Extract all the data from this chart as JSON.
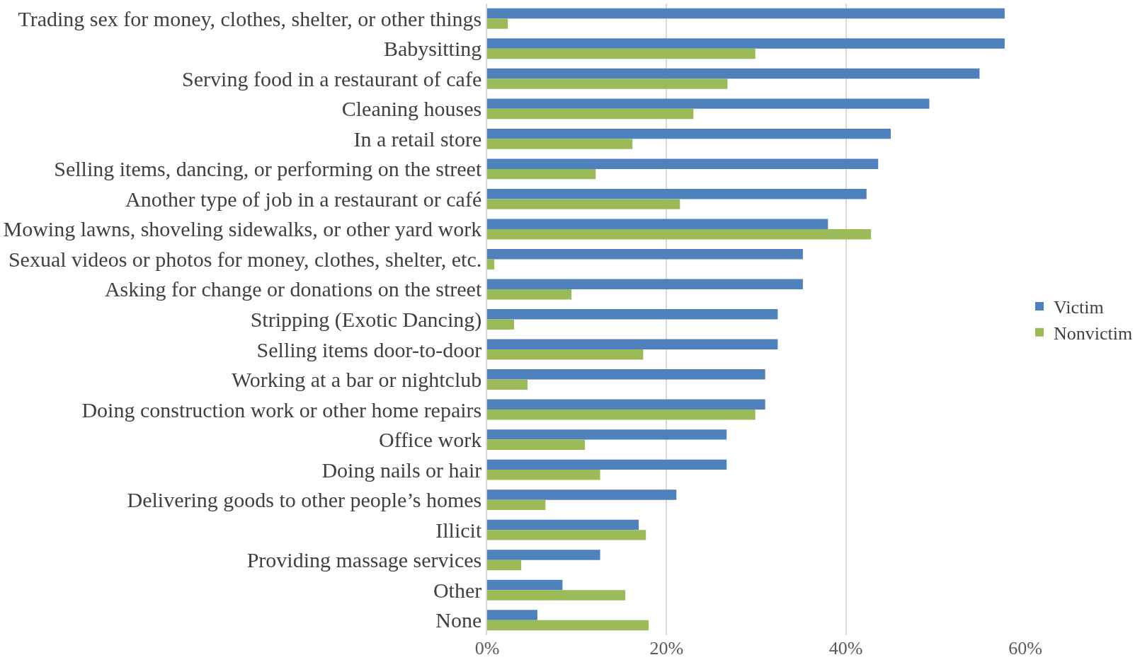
{
  "chart_data": {
    "type": "bar",
    "orientation": "horizontal",
    "categories": [
      "Trading sex for money, clothes, shelter, or other things",
      "Babysitting",
      "Serving food in a restaurant of cafe",
      "Cleaning houses",
      "In a retail store",
      "Selling items, dancing, or performing on the street",
      "Another type of job in a restaurant or café",
      "Mowing lawns, shoveling sidewalks, or other yard work",
      "Sexual videos or photos for money, clothes, shelter, etc.",
      "Asking for change or donations on the street",
      "Stripping (Exotic Dancing)",
      "Selling items door-to-door",
      "Working at a bar or nightclub",
      "Doing construction work or other home repairs",
      "Office work",
      "Doing nails or hair",
      "Delivering goods to other people’s homes",
      "Illicit",
      "Providing massage services",
      "Other",
      "None"
    ],
    "series": [
      {
        "name": "Victim",
        "color": "#4f81bd",
        "values": [
          57.7,
          57.7,
          54.9,
          49.3,
          45.0,
          43.6,
          42.3,
          38.0,
          35.2,
          35.2,
          32.4,
          32.4,
          31.0,
          31.0,
          26.7,
          26.7,
          21.1,
          16.9,
          12.6,
          8.4,
          5.6
        ]
      },
      {
        "name": "Nonvictim",
        "color": "#9bbb59",
        "values": [
          2.3,
          29.9,
          26.8,
          23.0,
          16.2,
          12.1,
          21.5,
          42.8,
          0.8,
          9.4,
          3.0,
          17.4,
          4.5,
          29.9,
          10.9,
          12.6,
          6.5,
          17.7,
          3.8,
          15.4,
          18.0
        ]
      }
    ],
    "xlim": [
      0,
      60
    ],
    "xticks": [
      {
        "value": 0,
        "label": "0%"
      },
      {
        "value": 20,
        "label": "20%"
      },
      {
        "value": 40,
        "label": "40%"
      },
      {
        "value": 60,
        "label": "60%"
      }
    ],
    "grid": "x",
    "legend": "right"
  }
}
